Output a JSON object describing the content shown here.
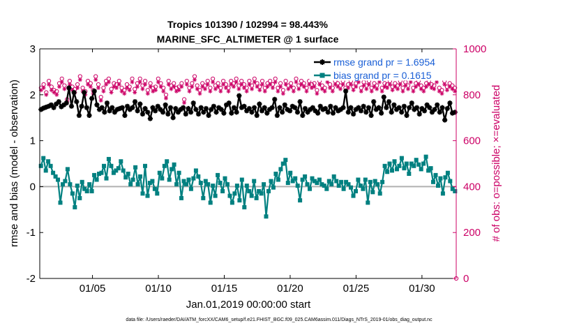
{
  "chart_data": {
    "type": "line",
    "title_line1": "Tropics 101390 / 102994 = 98.443%",
    "title_line2": "MARINE_SFC_ALTIMETER @ 1 surface",
    "xlabel": "Jan.01,2019 00:00:00 start",
    "ylabel_left": "rmse and bias (model - observation)",
    "ylabel_right": "# of obs: o=possible; ×=evaluated",
    "footnote": "data file: /Users/raeder/DAI/ATM_forcXX/CAM6_setup/f.e21.FHIST_BGC.f09_025.CAM6assim.011/Diags_NTrS_2019-01/obs_diag_output.nc",
    "x_ticks": [
      "01/05",
      "01/10",
      "01/15",
      "01/20",
      "01/25",
      "01/30"
    ],
    "x_tick_days": [
      5,
      10,
      15,
      20,
      25,
      30
    ],
    "xlim_days": [
      1,
      32.6
    ],
    "ylim_left": [
      -2,
      3
    ],
    "ylim_right": [
      0,
      1000
    ],
    "y_ticks_left": [
      "-2",
      "-1",
      "0",
      "1",
      "2",
      "3"
    ],
    "y_ticks_right": [
      "0",
      "200",
      "400",
      "600",
      "800",
      "1000"
    ],
    "legend": [
      "rmse grand pr = 1.6954",
      "bias grand pr = 0.1615"
    ],
    "series": [
      {
        "name": "rmse",
        "axis": "left",
        "color": "#000000",
        "marker": "star",
        "values": [
          1.68,
          1.71,
          1.73,
          1.75,
          1.78,
          1.72,
          1.8,
          1.85,
          1.74,
          1.78,
          1.82,
          2.15,
          1.75,
          2.05,
          1.85,
          1.55,
          1.75,
          2.05,
          1.72,
          1.55,
          1.92,
          2.08,
          1.78,
          1.68,
          1.72,
          1.62,
          1.82,
          1.65,
          1.72,
          1.62,
          1.68,
          1.7,
          1.72,
          1.55,
          1.75,
          1.68,
          1.72,
          1.85,
          1.65,
          1.8,
          1.58,
          1.7,
          1.62,
          1.48,
          1.72,
          1.65,
          1.75,
          1.68,
          1.62,
          1.78,
          1.58,
          1.72,
          1.5,
          1.7,
          1.62,
          1.68,
          1.72,
          1.58,
          1.7,
          1.62,
          1.82,
          1.68,
          1.58,
          1.72,
          1.62,
          1.7,
          1.55,
          1.68,
          1.75,
          1.62,
          1.72,
          1.68,
          1.6,
          1.78,
          1.82,
          1.6,
          1.72,
          1.62,
          1.98,
          1.72,
          1.75,
          1.65,
          1.7,
          1.62,
          1.72,
          1.55,
          1.8,
          1.65,
          1.72,
          1.6,
          1.68,
          1.72,
          1.9,
          1.55,
          1.72,
          1.62,
          1.78,
          1.68,
          1.65,
          1.75,
          1.72,
          1.62,
          1.85,
          1.55,
          1.7,
          1.62,
          1.68,
          1.72,
          1.65,
          1.6,
          1.75,
          1.68,
          1.7,
          1.62,
          1.75,
          1.6,
          1.72,
          1.65,
          1.68,
          1.72,
          2.08,
          1.62,
          1.72,
          1.58,
          1.68,
          1.72,
          1.65,
          1.75,
          1.62,
          1.72,
          1.55,
          1.85,
          1.68,
          1.72,
          1.6,
          1.95,
          1.72,
          1.85,
          1.62,
          1.78,
          1.68,
          1.72,
          1.62,
          1.75,
          1.55,
          1.72,
          1.82,
          1.68,
          1.72,
          1.58,
          1.7,
          1.65,
          1.78,
          1.72,
          1.62,
          1.68,
          1.78,
          1.62,
          1.72,
          1.45,
          1.7,
          1.82,
          1.6,
          1.62
        ]
      },
      {
        "name": "bias",
        "axis": "left",
        "color": "#008080",
        "marker": "square",
        "values": [
          0.45,
          0.62,
          0.35,
          0.55,
          0.45,
          0.3,
          0.22,
          0.15,
          -0.35,
          0.05,
          0.12,
          0.38,
          0.05,
          -0.15,
          -0.45,
          0.02,
          -0.25,
          0.1,
          -0.05,
          -0.1,
          0.05,
          -0.1,
          0.25,
          0.15,
          0.28,
          0.3,
          0.45,
          0.18,
          0.6,
          0.45,
          0.3,
          0.35,
          0.4,
          0.55,
          0.35,
          0.2,
          0.28,
          0.05,
          0.15,
          0.42,
          0.05,
          0.22,
          -0.15,
          0.45,
          -0.2,
          0.08,
          0.12,
          -0.05,
          -0.15,
          0.3,
          0.18,
          0.45,
          0.55,
          0.15,
          0.38,
          0.48,
          0.05,
          0.3,
          -0.25,
          0.12,
          0.05,
          0.15,
          -0.05,
          0.18,
          0.35,
          0.22,
          0.08,
          -0.25,
          0.12,
          0.05,
          -0.35,
          0.02,
          -0.2,
          0.25,
          0.08,
          -0.1,
          0.18,
          0.05,
          -0.2,
          -0.35,
          -0.15,
          0.02,
          -0.3,
          0.15,
          -0.45,
          0.02,
          -0.1,
          -0.2,
          0.12,
          -0.25,
          -0.1,
          -0.15,
          0.05,
          -0.65,
          -0.1,
          0.12,
          -0.02,
          0.28,
          0.15,
          0.38,
          0.5,
          0.58,
          0.08,
          0.3,
          0.12,
          0.18,
          0.02,
          -0.3,
          0.15,
          0.22,
          0.05,
          -0.05,
          0.18,
          0.12,
          0.08,
          0.15,
          0.05,
          0.02,
          -0.05,
          0.12,
          0.05,
          0.22,
          0.12,
          0.02,
          0.1,
          -0.05,
          0.1,
          0.05,
          -0.02,
          -0.2,
          -0.1,
          0.15,
          0.02,
          -0.05,
          0.15,
          -0.35,
          0.1,
          -0.12,
          0.12,
          0.05,
          -0.15,
          0.1,
          0.45,
          0.32,
          0.5,
          0.35,
          0.55,
          0.38,
          0.45,
          0.62,
          0.4,
          0.5,
          0.28,
          0.5,
          0.45,
          0.58,
          0.48,
          0.38,
          0.5,
          0.65,
          0.35,
          0.4,
          0.1,
          0.25,
          0.02,
          0.18,
          -0.15,
          0.2,
          0.3,
          0.12,
          -0.05,
          -0.1
        ]
      },
      {
        "name": "obs possible",
        "axis": "right",
        "color": "#cc0066",
        "marker": "circle",
        "values": [
          830,
          845,
          810,
          860,
          835,
          820,
          815,
          850,
          870,
          840,
          780,
          860,
          835,
          825,
          845,
          880,
          830,
          815,
          860,
          850,
          820,
          880,
          845,
          790,
          830,
          860,
          870,
          825,
          850,
          845,
          860,
          830,
          820,
          845,
          835,
          870,
          825,
          850,
          870,
          840,
          860,
          820,
          850,
          830,
          835,
          870,
          850,
          830,
          800,
          860,
          840,
          850,
          830,
          835,
          850,
          780,
          860,
          830,
          850,
          880,
          840,
          820,
          850,
          840,
          860,
          830,
          870,
          840,
          850,
          830,
          860,
          845,
          830,
          860,
          850,
          870,
          840,
          860,
          845,
          830,
          860,
          840,
          870,
          850,
          835,
          860,
          830,
          850,
          860,
          845,
          870,
          830,
          850,
          820,
          860,
          840,
          850,
          830,
          870,
          840,
          860,
          850,
          830,
          860,
          845,
          850,
          820,
          860,
          840,
          830,
          870,
          845,
          830,
          860,
          850,
          840,
          860,
          830,
          845,
          860,
          835,
          850,
          870,
          830,
          855,
          840,
          860,
          830,
          850,
          840,
          870,
          830,
          850,
          845,
          860,
          835,
          850,
          840,
          860,
          830,
          855,
          840,
          870,
          830,
          850,
          860,
          840,
          830,
          850,
          860,
          845,
          840,
          870,
          830,
          820,
          860,
          835,
          850,
          840,
          830
        ]
      },
      {
        "name": "obs evaluated",
        "axis": "right",
        "color": "#cc0066",
        "marker": "star",
        "values": [
          820,
          830,
          800,
          845,
          820,
          810,
          800,
          835,
          855,
          825,
          770,
          845,
          820,
          810,
          830,
          865,
          815,
          800,
          845,
          835,
          805,
          865,
          830,
          775,
          815,
          845,
          855,
          810,
          835,
          830,
          845,
          815,
          805,
          830,
          820,
          855,
          810,
          835,
          855,
          825,
          845,
          805,
          835,
          815,
          820,
          855,
          835,
          815,
          785,
          845,
          825,
          835,
          815,
          820,
          835,
          765,
          845,
          815,
          835,
          865,
          825,
          805,
          835,
          825,
          845,
          815,
          855,
          825,
          835,
          815,
          845,
          830,
          815,
          845,
          835,
          855,
          825,
          845,
          830,
          815,
          845,
          825,
          855,
          835,
          820,
          845,
          815,
          835,
          845,
          830,
          855,
          815,
          835,
          805,
          845,
          825,
          835,
          815,
          855,
          825,
          845,
          835,
          815,
          845,
          830,
          835,
          805,
          845,
          825,
          815,
          855,
          830,
          815,
          845,
          835,
          825,
          845,
          815,
          830,
          845,
          820,
          835,
          855,
          815,
          840,
          825,
          845,
          815,
          835,
          825,
          855,
          815,
          835,
          830,
          845,
          820,
          835,
          825,
          845,
          815,
          840,
          825,
          855,
          815,
          835,
          845,
          825,
          815,
          835,
          845,
          830,
          825,
          855,
          815,
          805,
          845,
          820,
          835,
          825,
          815
        ]
      }
    ]
  }
}
